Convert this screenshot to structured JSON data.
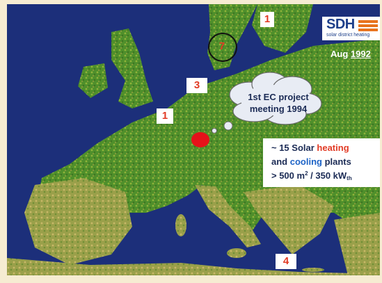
{
  "logo": {
    "title": "SDH",
    "subtitle": "solar district heating"
  },
  "date": {
    "prefix": "Aug ",
    "year": "1992"
  },
  "markers": {
    "scandinavia": "1",
    "sweden": "7",
    "denmark": "3",
    "france": "1",
    "greece": "4"
  },
  "cloud": {
    "line1": "1st EC project",
    "line2": "meeting 1994"
  },
  "info": {
    "line1_pre": "~ 15 Solar ",
    "line1_red": "heating",
    "line2_pre": "and ",
    "line2_blue": "cooling",
    "line2_post": " plants",
    "line3_pre": "> 500 m",
    "sup": "2",
    "line3_mid": " / 350 kW",
    "sub": "th"
  },
  "colors": {
    "sea": "#1c2f7a",
    "land": "#4f8f2b",
    "marker_text": "#e23b25",
    "accent_heating": "#e23b25",
    "accent_cooling": "#1d63c6",
    "highlight_dot": "#e5121a"
  }
}
